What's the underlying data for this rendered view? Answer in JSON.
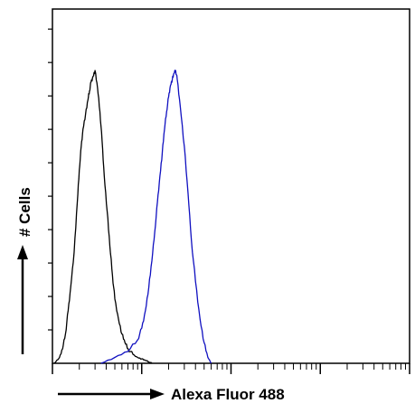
{
  "chart_data": {
    "type": "line",
    "title": "",
    "xlabel": "Alexa Fluor 488",
    "ylabel": "# Cells",
    "x_scale": "log",
    "xlim": [
      1,
      10000
    ],
    "ylim": [
      0,
      100
    ],
    "grid": false,
    "legend": "none",
    "series": [
      {
        "color": "#000000",
        "x": [
          1.05,
          1.2,
          1.3,
          1.4,
          1.5,
          1.6,
          1.75,
          1.9,
          2.0,
          2.1,
          2.2,
          2.35,
          2.5,
          2.6,
          2.7,
          2.85,
          3.0,
          3.2,
          3.4,
          3.6,
          3.8,
          4.1,
          4.4,
          4.7,
          5.0,
          5.5,
          6.0,
          6.5,
          7.0,
          8.0,
          9.0,
          10.0,
          11.0,
          12.0,
          13.0
        ],
        "y": [
          0,
          2,
          5,
          10,
          18,
          26,
          38,
          55,
          66,
          74,
          80,
          85,
          90,
          93,
          96,
          98,
          100,
          94,
          86,
          76,
          64,
          52,
          40,
          30,
          22,
          15,
          10,
          7,
          5,
          3,
          2,
          1.5,
          1,
          0.5,
          0
        ]
      },
      {
        "color": "#1010c0",
        "x": [
          3.5,
          5.0,
          7.0,
          9.0,
          10.0,
          11.0,
          12.0,
          13.0,
          14.0,
          15.0,
          16.0,
          17.0,
          18.0,
          19.0,
          20.0,
          21.0,
          22.0,
          23.0,
          24.0,
          25.0,
          27.0,
          30.0,
          33.0,
          36.0,
          40.0,
          45.0,
          50.0,
          55.0,
          60.0
        ],
        "y": [
          0,
          2,
          4,
          8,
          12,
          18,
          26,
          35,
          45,
          55,
          64,
          72,
          80,
          86,
          91,
          95,
          97,
          99,
          100,
          97,
          88,
          74,
          58,
          42,
          28,
          15,
          7,
          2,
          0
        ]
      }
    ]
  }
}
